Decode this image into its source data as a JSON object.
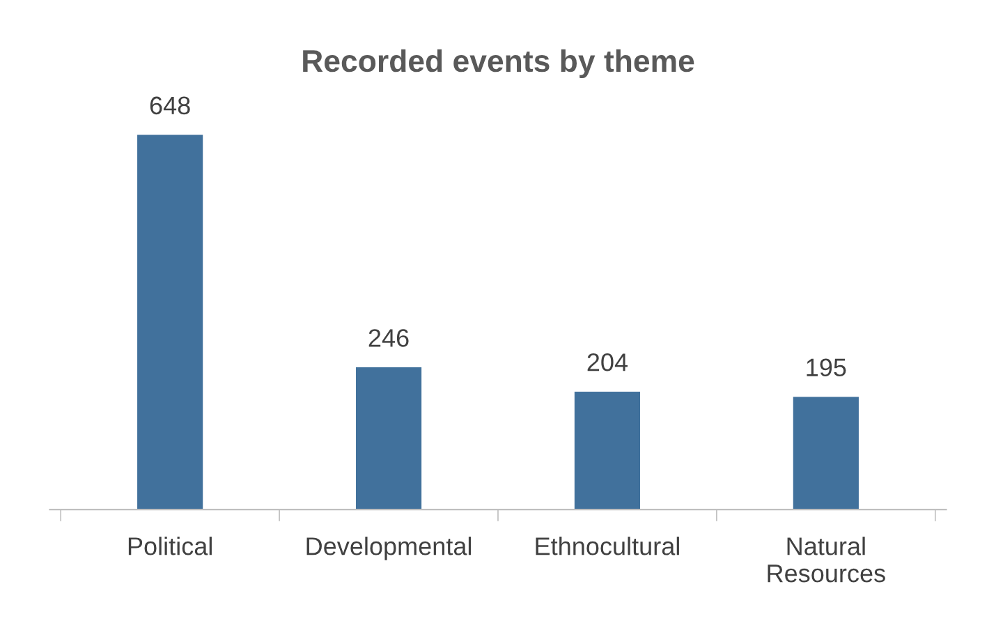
{
  "chart_data": {
    "type": "bar",
    "title": "Recorded events by theme",
    "categories": [
      "Political",
      "Developmental",
      "Ethnocultural",
      "Natural\nResources"
    ],
    "values": [
      648,
      246,
      204,
      195
    ],
    "color": "#41719c",
    "data_labels": true,
    "tick_labels": "x"
  }
}
